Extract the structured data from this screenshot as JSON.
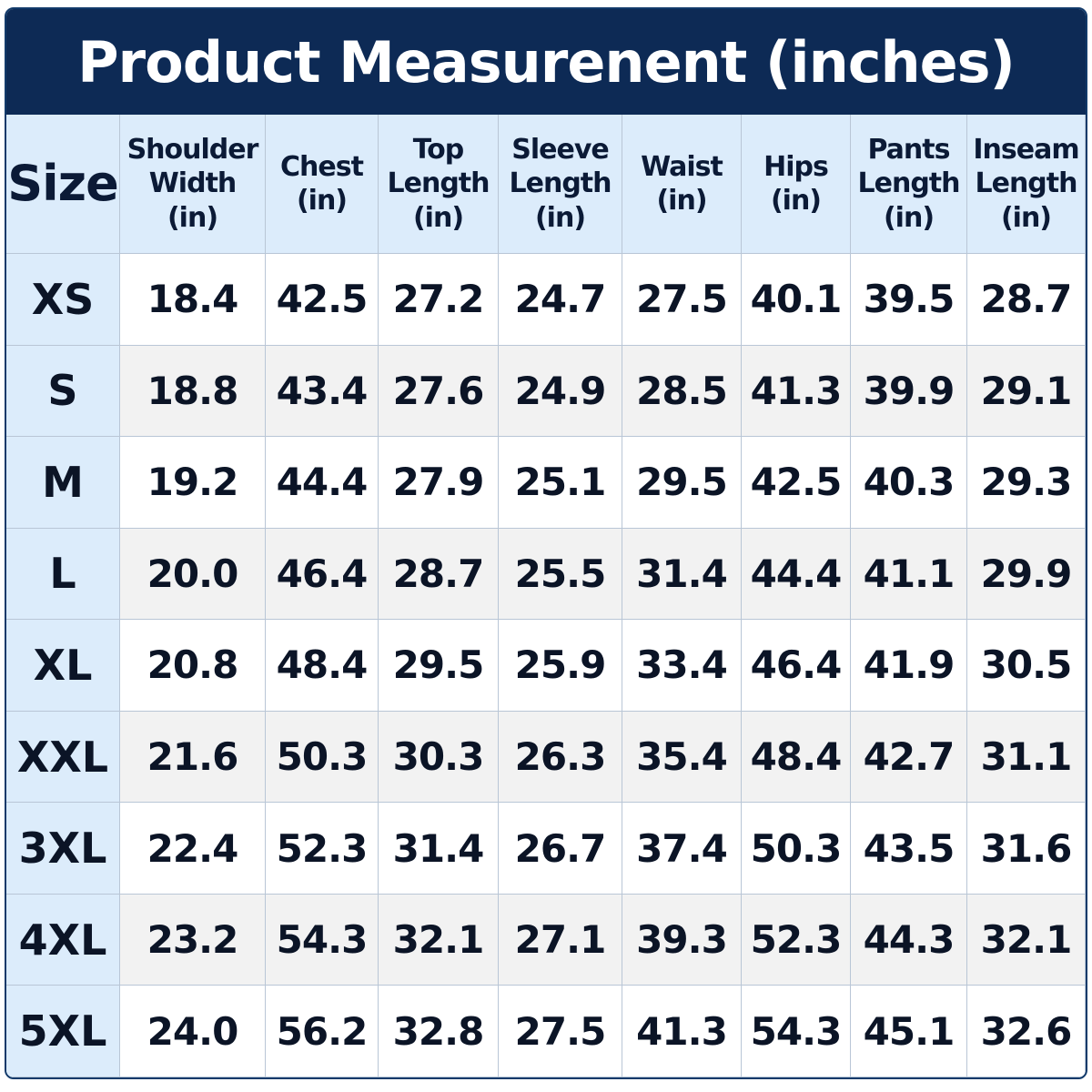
{
  "header": {
    "title": "Product Measurenent (inches)"
  },
  "table": {
    "columns": [
      "Size",
      "Shoulder\nWidth\n(in)",
      "Chest\n(in)",
      "Top\nLength\n(in)",
      "Sleeve\nLength\n(in)",
      "Waist\n(in)",
      "Hips\n(in)",
      "Pants\nLength\n(in)",
      "Inseam\nLength\n(in)"
    ],
    "rows": [
      [
        "XS",
        "18.4",
        "42.5",
        "27.2",
        "24.7",
        "27.5",
        "40.1",
        "39.5",
        "28.7"
      ],
      [
        "S",
        "18.8",
        "43.4",
        "27.6",
        "24.9",
        "28.5",
        "41.3",
        "39.9",
        "29.1"
      ],
      [
        "M",
        "19.2",
        "44.4",
        "27.9",
        "25.1",
        "29.5",
        "42.5",
        "40.3",
        "29.3"
      ],
      [
        "L",
        "20.0",
        "46.4",
        "28.7",
        "25.5",
        "31.4",
        "44.4",
        "41.1",
        "29.9"
      ],
      [
        "XL",
        "20.8",
        "48.4",
        "29.5",
        "25.9",
        "33.4",
        "46.4",
        "41.9",
        "30.5"
      ],
      [
        "XXL",
        "21.6",
        "50.3",
        "30.3",
        "26.3",
        "35.4",
        "48.4",
        "42.7",
        "31.1"
      ],
      [
        "3XL",
        "22.4",
        "52.3",
        "31.4",
        "26.7",
        "37.4",
        "50.3",
        "43.5",
        "31.6"
      ],
      [
        "4XL",
        "23.2",
        "54.3",
        "32.1",
        "27.1",
        "39.3",
        "52.3",
        "44.3",
        "32.1"
      ],
      [
        "5XL",
        "24.0",
        "56.2",
        "32.8",
        "27.5",
        "41.3",
        "54.3",
        "45.1",
        "32.6"
      ]
    ]
  }
}
